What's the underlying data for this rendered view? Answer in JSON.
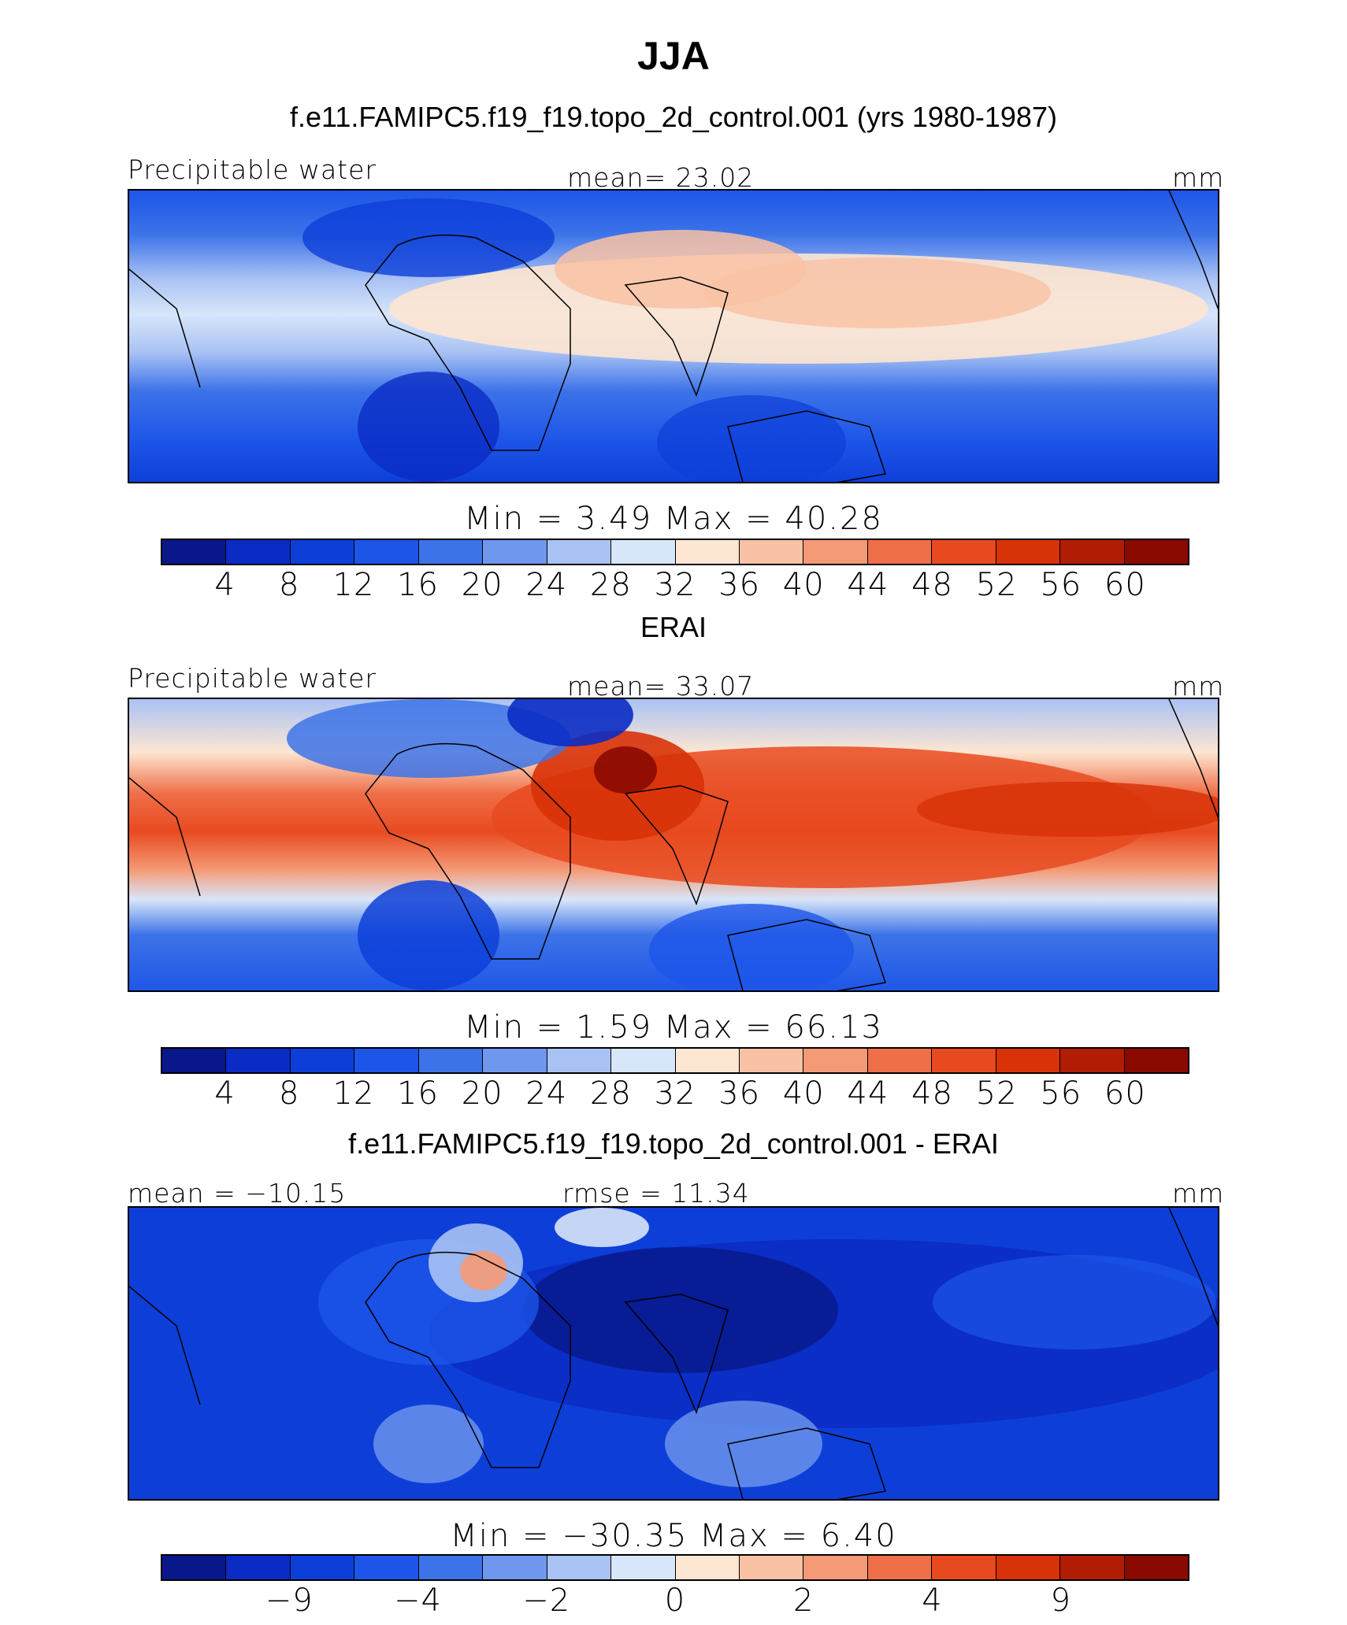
{
  "figure": {
    "title": "JJA"
  },
  "panels": [
    {
      "title": "f.e11.FAMIPC5.f19_f19.topo_2d_control.001 (yrs 1980-1987)",
      "left_label": "Precipitable water",
      "center_label": "mean=  23.02",
      "units": "mm",
      "minmax": "Min =    3.49  Max =   40.28"
    },
    {
      "title": "ERAI",
      "left_label": "Precipitable water",
      "center_label": "mean=  33.07",
      "units": "mm",
      "minmax": "Min =    1.59  Max =   66.13"
    },
    {
      "title": "f.e11.FAMIPC5.f19_f19.topo_2d_control.001 - ERAI",
      "left_label": "mean = −10.15",
      "center_label": "rmse =  11.34",
      "units": "mm",
      "minmax": "Min = −30.35  Max =    6.40"
    }
  ],
  "colorbar": {
    "colors": [
      "#08188a",
      "#0a2cc4",
      "#0d3fd8",
      "#1d55e8",
      "#3d73e8",
      "#6f97ee",
      "#a9c2f4",
      "#d8e6fa",
      "#fde6d2",
      "#f9c2a4",
      "#f59a76",
      "#ef6f48",
      "#e84a20",
      "#d83208",
      "#b01d04",
      "#8a0a02"
    ],
    "ticks_abs": [
      "4",
      "8",
      "12",
      "16",
      "20",
      "24",
      "28",
      "32",
      "36",
      "40",
      "44",
      "48",
      "52",
      "56",
      "60"
    ],
    "ticks_diff": [
      "−9",
      "",
      "−4",
      "",
      "−2",
      "",
      "0",
      "",
      "2",
      "",
      "4",
      "",
      "9"
    ]
  }
}
